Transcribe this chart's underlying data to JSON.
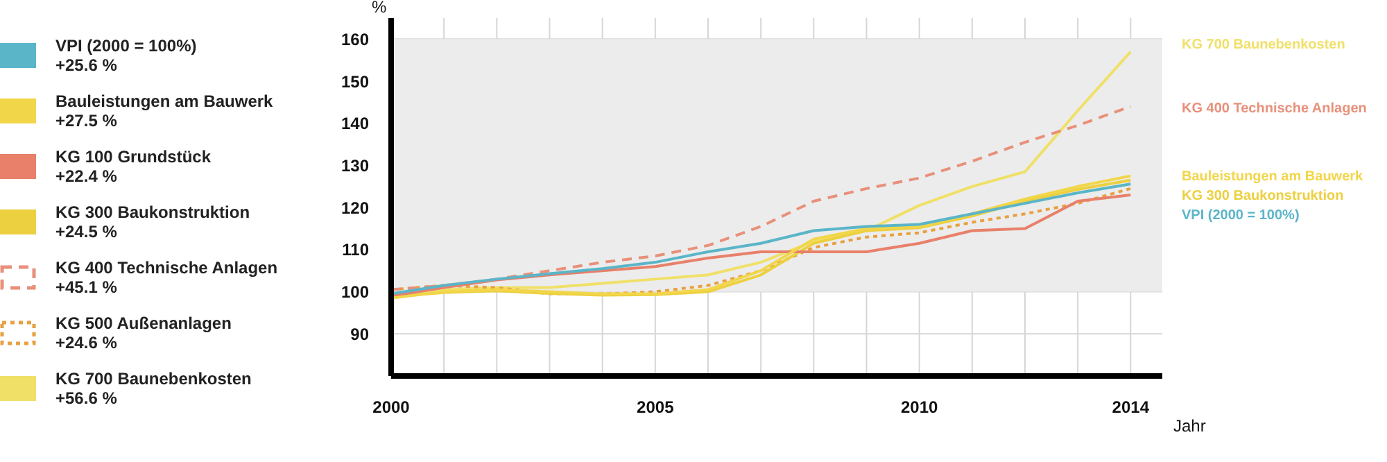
{
  "chart_data": {
    "type": "line",
    "ylabel": "%",
    "xlabel": "Jahr",
    "x": [
      2000,
      2001,
      2002,
      2003,
      2004,
      2005,
      2006,
      2007,
      2008,
      2009,
      2010,
      2011,
      2012,
      2013,
      2014
    ],
    "series": [
      {
        "name": "VPI (2000 = 100%)",
        "color": "#5bb5c8",
        "values": [
          99.5,
          101.5,
          103,
          104.3,
          105.5,
          107,
          109.5,
          111.5,
          114.5,
          115.5,
          116,
          118.5,
          121,
          123.5,
          125.6
        ]
      },
      {
        "name": "Bauleistungen am Bauwerk",
        "color": "#f2d64a",
        "values": [
          98.5,
          100,
          100.5,
          100,
          99.5,
          99.5,
          100.5,
          105,
          112.5,
          115,
          115.5,
          118.5,
          122,
          125,
          127.5
        ]
      },
      {
        "name": "KG 100 Grundstück",
        "color": "#e8806a",
        "values": [
          99,
          101,
          102.8,
          104,
          105,
          106,
          108,
          109.5,
          109.5,
          109.5,
          111.5,
          114.5,
          115,
          121.5,
          123
        ]
      },
      {
        "name": "KG 300 Baukonstruktion",
        "color": "#ecd040",
        "values": [
          98.8,
          99.8,
          100.2,
          99.6,
          99.2,
          99.3,
          100,
          104,
          111.5,
          114.5,
          115.2,
          118,
          121.5,
          124.3,
          126.5
        ]
      },
      {
        "name": "KG 400 Technische Anlagen",
        "color": "#e8907a",
        "line_style": "dashed",
        "values": [
          100.5,
          101.5,
          103,
          105,
          107,
          108.5,
          111,
          115.5,
          121.5,
          124.5,
          127,
          131,
          135.5,
          139.5,
          144
        ]
      },
      {
        "name": "KG 500 Außenanlagen",
        "color": "#e8a040",
        "line_style": "dotted",
        "values": [
          100.5,
          101.5,
          101,
          99.5,
          99.5,
          100,
          101.5,
          105,
          110.5,
          113,
          114,
          116.5,
          118.5,
          121,
          124.5
        ]
      },
      {
        "name": "KG 700 Baunebenkosten",
        "color": "#f0e068",
        "values": [
          99,
          100.5,
          101,
          101,
          102,
          103,
          104,
          107,
          112,
          114.5,
          120.5,
          125,
          128.5,
          143,
          157
        ]
      }
    ],
    "xlim": [
      2000,
      2014.6
    ],
    "xticks": [
      2000,
      {
        "value": 2001,
        "label": null
      },
      {
        "value": 2002,
        "label": null
      },
      {
        "value": 2003,
        "label": null
      },
      {
        "value": 2004,
        "label": null
      },
      2005,
      {
        "value": 2006,
        "label": null
      },
      {
        "value": 2007,
        "label": null
      },
      {
        "value": 2008,
        "label": null
      },
      {
        "value": 2009,
        "label": null
      },
      2010,
      {
        "value": 2011,
        "label": null
      },
      {
        "value": 2012,
        "label": null
      },
      {
        "value": 2013,
        "label": null
      },
      2014
    ],
    "ylim": [
      80,
      165
    ],
    "yticks": [
      90,
      100,
      110,
      120,
      130,
      140,
      150,
      160
    ],
    "bands": [
      {
        "axis": "y",
        "from": 100,
        "to": 160,
        "color": "#ececec"
      }
    ],
    "grid": true,
    "legend": "left",
    "marker": "none",
    "annotations": [
      "KG 700 Baunebenkosten",
      "KG 400 Technische Anlagen",
      "Bauleistungen am Bauwerk",
      "KG 300 Baukonstruktion",
      "VPI (2000 = 100%)",
      "+25.6 %",
      "+27.5 %",
      "+22.4 %",
      "+24.5 %",
      "+45.1 %",
      "+24.6 %",
      "+56.6 %"
    ]
  }
}
